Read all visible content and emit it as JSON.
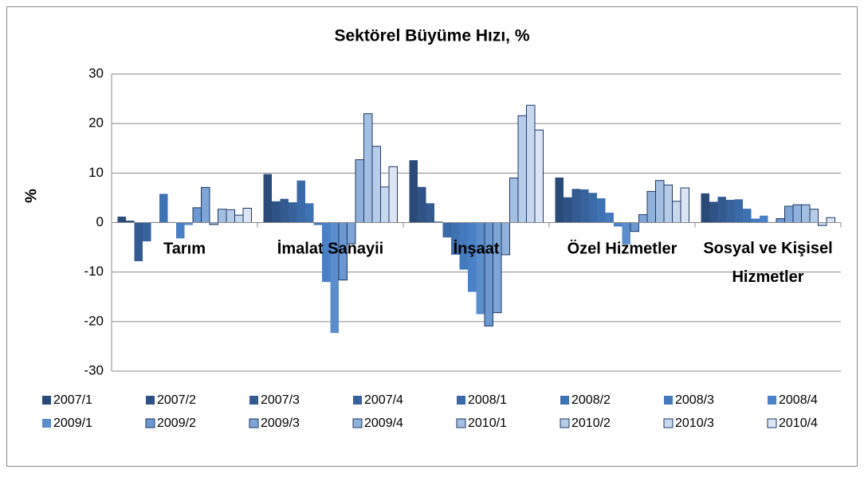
{
  "chart_data": {
    "type": "bar",
    "title": "Sektörel Büyüme Hızı, %",
    "y_label": "%",
    "categories": [
      "Tarım",
      "İmalat Sanayii",
      "İnşaat",
      "Özel Hizmetler",
      "Sosyal ve Kişisel Hizmetler"
    ],
    "ylim": [
      -30,
      30
    ],
    "yticks": [
      -30,
      -20,
      -10,
      0,
      10,
      20,
      30
    ],
    "grid": true,
    "legend": "bottom",
    "series": [
      {
        "name": "2007/1",
        "color": "#2a4a78",
        "values": [
          1.2,
          9.8,
          12.6,
          9.1,
          5.9
        ]
      },
      {
        "name": "2007/2",
        "color": "#2f5286",
        "values": [
          0.4,
          4.3,
          7.2,
          5.1,
          4.2
        ]
      },
      {
        "name": "2007/3",
        "color": "#335a91",
        "values": [
          -7.8,
          4.8,
          3.9,
          6.8,
          5.2
        ]
      },
      {
        "name": "2007/4",
        "color": "#37629c",
        "values": [
          -3.8,
          4.1,
          0.2,
          6.7,
          4.6
        ]
      },
      {
        "name": "2008/1",
        "color": "#3b6aa8",
        "values": [
          0.1,
          8.5,
          -3.0,
          6.0,
          4.7
        ]
      },
      {
        "name": "2008/2",
        "color": "#3f72b3",
        "values": [
          5.8,
          3.9,
          -6.5,
          4.9,
          2.8
        ]
      },
      {
        "name": "2008/3",
        "color": "#4479bd",
        "values": [
          0.1,
          -0.5,
          -9.5,
          2.0,
          0.8
        ]
      },
      {
        "name": "2008/4",
        "color": "#4a80c6",
        "values": [
          -3.2,
          -12.0,
          -14.0,
          -0.8,
          1.4
        ]
      },
      {
        "name": "2009/1",
        "color": "#5b8ccc",
        "values": [
          -0.5,
          -22.3,
          -18.5,
          -4.4,
          0.1
        ]
      },
      {
        "name": "2009/2",
        "color": "#6c98d1",
        "border": "#1f3864",
        "values": [
          3.0,
          -11.6,
          -20.9,
          -1.8,
          0.8
        ]
      },
      {
        "name": "2009/3",
        "color": "#7ea5d6",
        "border": "#1f3864",
        "values": [
          7.1,
          -4.3,
          -18.2,
          1.6,
          3.3
        ]
      },
      {
        "name": "2009/4",
        "color": "#90b1db",
        "border": "#1f3864",
        "values": [
          -0.4,
          12.7,
          -6.5,
          6.3,
          3.6
        ]
      },
      {
        "name": "2010/1",
        "color": "#a3bfe2",
        "border": "#1f3864",
        "values": [
          2.7,
          22.0,
          9.0,
          8.5,
          3.6
        ]
      },
      {
        "name": "2010/2",
        "color": "#b6cce8",
        "border": "#1f3864",
        "values": [
          2.6,
          15.4,
          21.6,
          7.6,
          2.7
        ]
      },
      {
        "name": "2010/3",
        "color": "#c8d9ee",
        "border": "#1f3864",
        "values": [
          1.5,
          7.2,
          23.7,
          4.3,
          -0.6
        ]
      },
      {
        "name": "2010/4",
        "color": "#dbe5f4",
        "border": "#1f3864",
        "values": [
          2.9,
          11.3,
          18.7,
          7.0,
          1.0
        ]
      }
    ]
  }
}
